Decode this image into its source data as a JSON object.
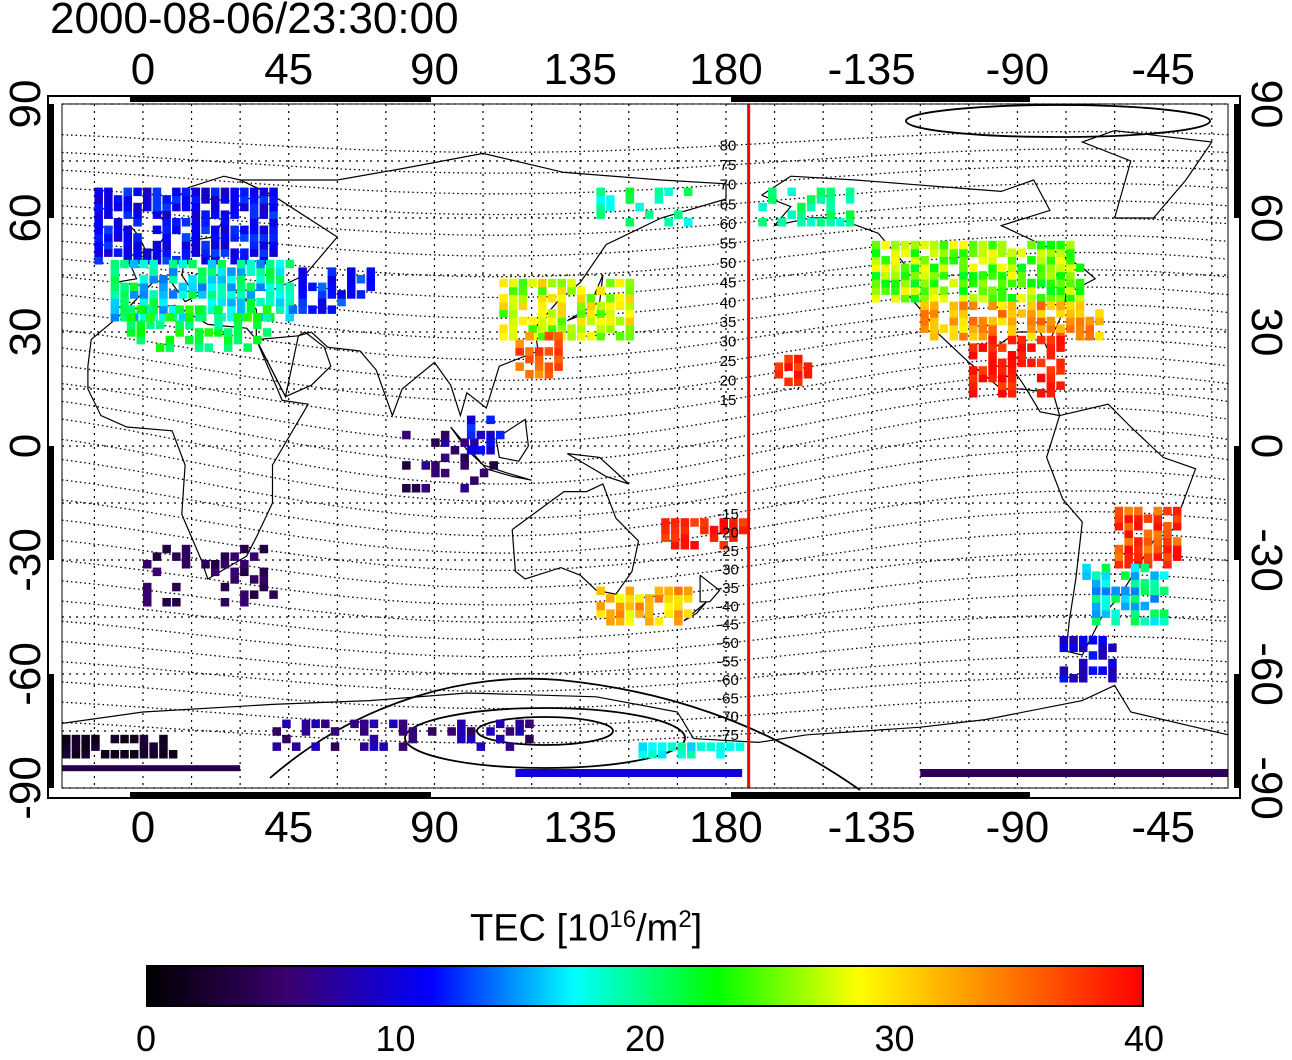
{
  "title": "2000-08-06/23:30:00",
  "map": {
    "top_lon_labels": [
      "0",
      "45",
      "90",
      "135",
      "180",
      "-135",
      "-90",
      "-45"
    ],
    "bottom_lon_labels": [
      "0",
      "45",
      "90",
      "135",
      "180",
      "-135",
      "-90",
      "-45"
    ],
    "left_lat_labels": [
      "90",
      "60",
      "30",
      "0",
      "-30",
      "-60",
      "-90"
    ],
    "right_lat_labels": [
      "90",
      "60",
      "30",
      "0",
      "-30",
      "-60",
      "-90"
    ],
    "mlat_labels": [
      "80",
      "75",
      "70",
      "65",
      "60",
      "55",
      "50",
      "45",
      "40",
      "35",
      "30",
      "25",
      "20",
      "15",
      "-15",
      "-20",
      "-25",
      "-30",
      "-35",
      "-40",
      "-45",
      "-50",
      "-55",
      "-60",
      "-65",
      "-70",
      "-75"
    ],
    "lon_range": [
      -25,
      335
    ],
    "lat_range": [
      -90,
      90
    ],
    "grid": true,
    "marker_line_color": "#ff0000",
    "marker_line_lon": 187
  },
  "colorbar": {
    "title_main": "TEC  [10",
    "title_exp": "16",
    "title_mid": "/m",
    "title_exp2": "2",
    "title_end": "]",
    "tick_labels": [
      "0",
      "10",
      "20",
      "30",
      "40"
    ],
    "range": [
      0,
      40
    ],
    "colors": [
      "#000000",
      "#3a0070",
      "#0000ff",
      "#00ffff",
      "#00ff00",
      "#ffff00",
      "#ff7f00",
      "#ff0000"
    ]
  }
}
